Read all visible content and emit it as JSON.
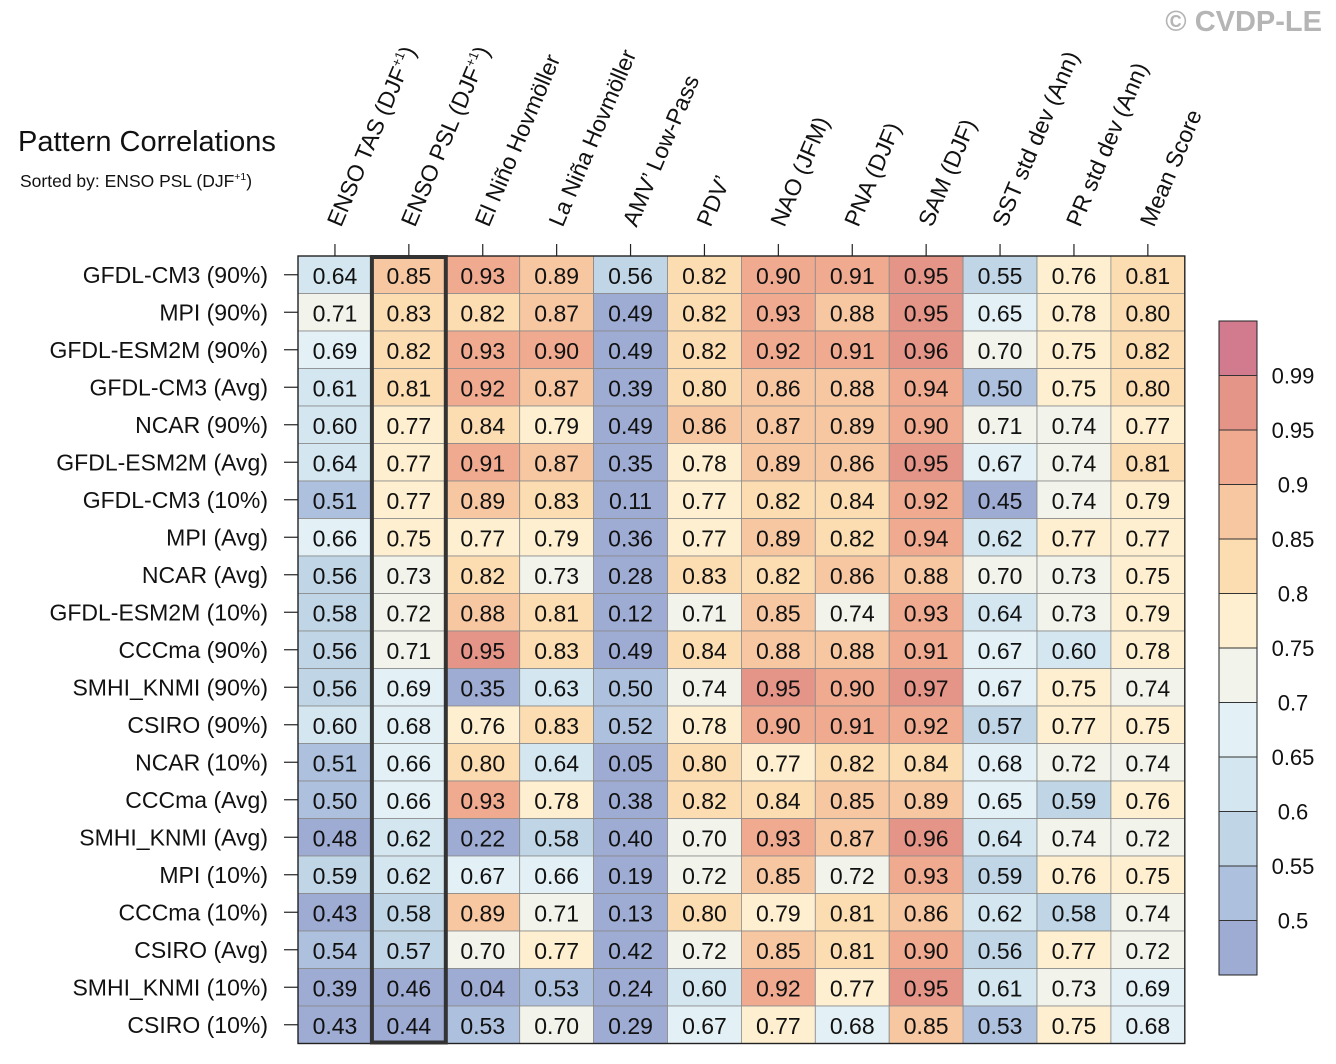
{
  "title": "Pattern Correlations",
  "subtitle": {
    "text": "Sorted by: ENSO PSL (DJF",
    "sup": "+1",
    "close": ")"
  },
  "watermark": "© CVDP-LE",
  "chart_data": {
    "type": "heatmap",
    "columns": [
      {
        "text": "ENSO TAS (DJF",
        "sup": "+1",
        "close": ")"
      },
      {
        "text": "ENSO PSL (DJF",
        "sup": "+1",
        "close": ")"
      },
      {
        "text": "El Niño Hovmöller"
      },
      {
        "text": "La Niña Hovmöller"
      },
      {
        "text": "AMV’ Low-Pass"
      },
      {
        "text": "PDV’"
      },
      {
        "text": "NAO (JFM)"
      },
      {
        "text": "PNA (DJF)"
      },
      {
        "text": "SAM (DJF)"
      },
      {
        "text": "SST std dev (Ann)"
      },
      {
        "text": "PR std dev (Ann)"
      },
      {
        "text": "Mean Score"
      }
    ],
    "highlighted_column": 1,
    "rows": [
      {
        "label": "GFDL-CM3 (90%)",
        "values": [
          0.64,
          0.85,
          0.93,
          0.89,
          0.56,
          0.82,
          0.9,
          0.91,
          0.95,
          0.55,
          0.76,
          0.81
        ]
      },
      {
        "label": "MPI (90%)",
        "values": [
          0.71,
          0.83,
          0.82,
          0.87,
          0.49,
          0.82,
          0.93,
          0.88,
          0.95,
          0.65,
          0.78,
          0.8
        ]
      },
      {
        "label": "GFDL-ESM2M (90%)",
        "values": [
          0.69,
          0.82,
          0.93,
          0.9,
          0.49,
          0.82,
          0.92,
          0.91,
          0.96,
          0.7,
          0.75,
          0.82
        ]
      },
      {
        "label": "GFDL-CM3 (Avg)",
        "values": [
          0.61,
          0.81,
          0.92,
          0.87,
          0.39,
          0.8,
          0.86,
          0.88,
          0.94,
          0.5,
          0.75,
          0.8
        ]
      },
      {
        "label": "NCAR (90%)",
        "values": [
          0.6,
          0.77,
          0.84,
          0.79,
          0.49,
          0.86,
          0.87,
          0.89,
          0.9,
          0.71,
          0.74,
          0.77
        ]
      },
      {
        "label": "GFDL-ESM2M (Avg)",
        "values": [
          0.64,
          0.77,
          0.91,
          0.87,
          0.35,
          0.78,
          0.89,
          0.86,
          0.95,
          0.67,
          0.74,
          0.81
        ]
      },
      {
        "label": "GFDL-CM3 (10%)",
        "values": [
          0.51,
          0.77,
          0.89,
          0.83,
          0.11,
          0.77,
          0.82,
          0.84,
          0.92,
          0.45,
          0.74,
          0.79
        ]
      },
      {
        "label": "MPI (Avg)",
        "values": [
          0.66,
          0.75,
          0.77,
          0.79,
          0.36,
          0.77,
          0.89,
          0.82,
          0.94,
          0.62,
          0.77,
          0.77
        ]
      },
      {
        "label": "NCAR (Avg)",
        "values": [
          0.56,
          0.73,
          0.82,
          0.73,
          0.28,
          0.83,
          0.82,
          0.86,
          0.88,
          0.7,
          0.73,
          0.75
        ]
      },
      {
        "label": "GFDL-ESM2M (10%)",
        "values": [
          0.58,
          0.72,
          0.88,
          0.81,
          0.12,
          0.71,
          0.85,
          0.74,
          0.93,
          0.64,
          0.73,
          0.79
        ]
      },
      {
        "label": "CCCma (90%)",
        "values": [
          0.56,
          0.71,
          0.95,
          0.83,
          0.49,
          0.84,
          0.88,
          0.88,
          0.91,
          0.67,
          0.6,
          0.78
        ]
      },
      {
        "label": "SMHI_KNMI (90%)",
        "values": [
          0.56,
          0.69,
          0.35,
          0.63,
          0.5,
          0.74,
          0.95,
          0.9,
          0.97,
          0.67,
          0.75,
          0.74
        ]
      },
      {
        "label": "CSIRO (90%)",
        "values": [
          0.6,
          0.68,
          0.76,
          0.83,
          0.52,
          0.78,
          0.9,
          0.91,
          0.92,
          0.57,
          0.77,
          0.75
        ]
      },
      {
        "label": "NCAR (10%)",
        "values": [
          0.51,
          0.66,
          0.8,
          0.64,
          0.05,
          0.8,
          0.77,
          0.82,
          0.84,
          0.68,
          0.72,
          0.74
        ]
      },
      {
        "label": "CCCma (Avg)",
        "values": [
          0.5,
          0.66,
          0.93,
          0.78,
          0.38,
          0.82,
          0.84,
          0.85,
          0.89,
          0.65,
          0.59,
          0.76
        ]
      },
      {
        "label": "SMHI_KNMI (Avg)",
        "values": [
          0.48,
          0.62,
          0.22,
          0.58,
          0.4,
          0.7,
          0.93,
          0.87,
          0.96,
          0.64,
          0.74,
          0.72
        ]
      },
      {
        "label": "MPI (10%)",
        "values": [
          0.59,
          0.62,
          0.67,
          0.66,
          0.19,
          0.72,
          0.85,
          0.72,
          0.93,
          0.59,
          0.76,
          0.75
        ]
      },
      {
        "label": "CCCma (10%)",
        "values": [
          0.43,
          0.58,
          0.89,
          0.71,
          0.13,
          0.8,
          0.79,
          0.81,
          0.86,
          0.62,
          0.58,
          0.74
        ]
      },
      {
        "label": "CSIRO (Avg)",
        "values": [
          0.54,
          0.57,
          0.7,
          0.77,
          0.42,
          0.72,
          0.85,
          0.81,
          0.9,
          0.56,
          0.77,
          0.72
        ]
      },
      {
        "label": "SMHI_KNMI (10%)",
        "values": [
          0.39,
          0.46,
          0.04,
          0.53,
          0.24,
          0.6,
          0.92,
          0.77,
          0.95,
          0.61,
          0.73,
          0.69
        ]
      },
      {
        "label": "CSIRO (10%)",
        "values": [
          0.43,
          0.44,
          0.53,
          0.7,
          0.29,
          0.67,
          0.77,
          0.68,
          0.85,
          0.53,
          0.75,
          0.68
        ]
      }
    ],
    "colorbar": {
      "levels": [
        0.5,
        0.55,
        0.6,
        0.65,
        0.7,
        0.75,
        0.8,
        0.85,
        0.9,
        0.95,
        0.99
      ],
      "labels": [
        "0.5",
        "0.55",
        "0.6",
        "0.65",
        "0.7",
        "0.75",
        "0.8",
        "0.85",
        "0.9",
        "0.95",
        "0.99"
      ],
      "colors": [
        "#9eabd2",
        "#adc1de",
        "#c0d6e7",
        "#d4e6f0",
        "#e3f0f5",
        "#f2f3ea",
        "#fdefcf",
        "#fcdcb1",
        "#f7c7a2",
        "#f0aa90",
        "#e59488",
        "#d27a8e"
      ]
    }
  }
}
